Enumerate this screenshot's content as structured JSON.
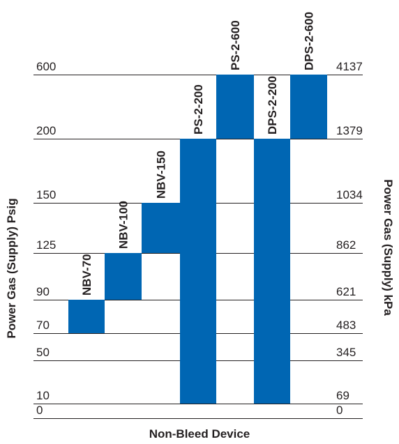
{
  "chart_data": {
    "type": "bar",
    "subtype": "floating-range",
    "xlabel": "Non-Bleed Device",
    "ylabel_left": "Power Gas (Supply) Psig",
    "ylabel_right": "Power Gas (Supply) kPa",
    "yscale": "ordinal (tick levels evenly spaced)",
    "left_ticks": [
      "0",
      "10",
      "50",
      "70",
      "90",
      "125",
      "150",
      "200",
      "600"
    ],
    "right_ticks": [
      "0",
      "69",
      "345",
      "483",
      "621",
      "862",
      "1034",
      "1379",
      "4137"
    ],
    "categories": [
      "NBV-70",
      "NBV-100",
      "NBV-150",
      "PS-2-200",
      "PS-2-600",
      "DPS-2-200",
      "DPS-2-600"
    ],
    "bars": [
      {
        "label": "NBV-70",
        "low_psig": 70,
        "high_psig": 90
      },
      {
        "label": "NBV-100",
        "low_psig": 90,
        "high_psig": 125
      },
      {
        "label": "NBV-150",
        "low_psig": 125,
        "high_psig": 150
      },
      {
        "label": "PS-2-200",
        "low_psig": 10,
        "high_psig": 200
      },
      {
        "label": "PS-2-600",
        "low_psig": 200,
        "high_psig": 600
      },
      {
        "label": "DPS-2-200",
        "low_psig": 10,
        "high_psig": 200
      },
      {
        "label": "DPS-2-600",
        "low_psig": 200,
        "high_psig": 600
      }
    ],
    "bar_color": "#0066b3",
    "gridlines": true,
    "legend": "none"
  }
}
